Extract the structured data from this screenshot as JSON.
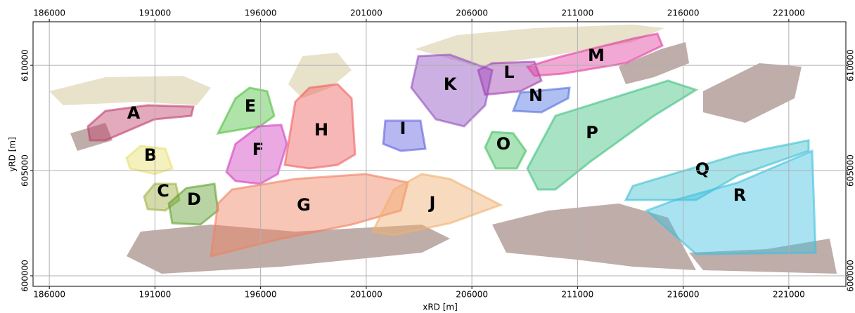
{
  "chart_data": {
    "type": "map",
    "x_label": "xRD [m]",
    "y_label": "yRD [m]",
    "xlim": [
      185230,
      223700
    ],
    "ylim": [
      599500,
      612070
    ],
    "xticks": [
      186000,
      191000,
      196000,
      201000,
      206000,
      211000,
      216000,
      221000
    ],
    "yticks": [
      600000,
      605000,
      610000
    ],
    "grid": true,
    "regions": [
      {
        "label": "A",
        "color": "#c0406a"
      },
      {
        "label": "B",
        "color": "#e8e070"
      },
      {
        "label": "C",
        "color": "#a0b040"
      },
      {
        "label": "D",
        "color": "#60a030"
      },
      {
        "label": "E",
        "color": "#50c040"
      },
      {
        "label": "F",
        "color": "#d040c0"
      },
      {
        "label": "G",
        "color": "#f08060"
      },
      {
        "label": "H",
        "color": "#f06060"
      },
      {
        "label": "I",
        "color": "#6060e0"
      },
      {
        "label": "J",
        "color": "#f0b070"
      },
      {
        "label": "K",
        "color": "#9050c0"
      },
      {
        "label": "L",
        "color": "#a040b0"
      },
      {
        "label": "M",
        "color": "#e040a0"
      },
      {
        "label": "N",
        "color": "#5070e0"
      },
      {
        "label": "O",
        "color": "#40c060"
      },
      {
        "label": "P",
        "color": "#40c080"
      },
      {
        "label": "Q",
        "color": "#40c0d0"
      },
      {
        "label": "R",
        "color": "#40c0e0"
      }
    ]
  }
}
